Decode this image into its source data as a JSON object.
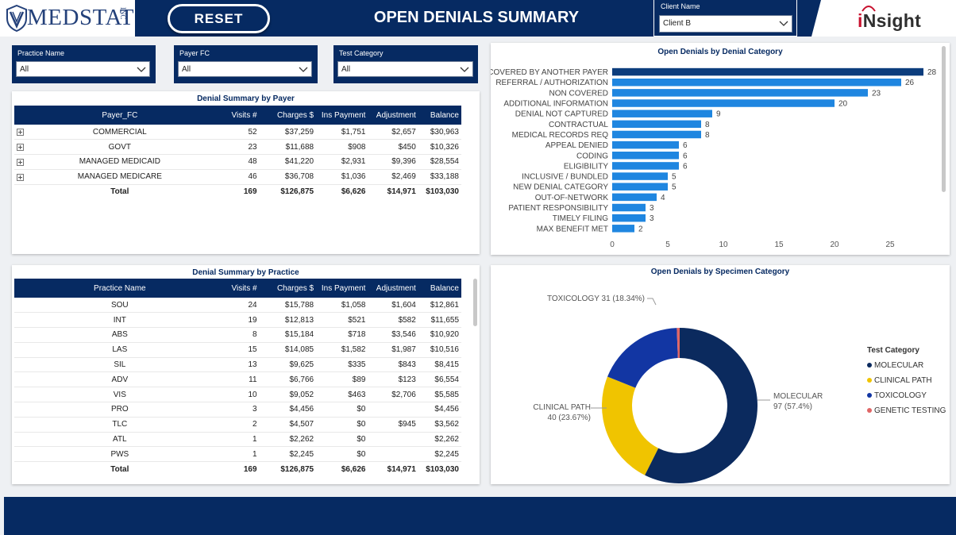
{
  "header": {
    "logo_text": "MEDSTAT",
    "logo_suffix": "INC",
    "reset_label": "RESET",
    "page_title": "OPEN DENIALS SUMMARY",
    "client_label": "Client Name",
    "client_value": "Client B",
    "insight_prefix": "i",
    "insight_rest": "Nsight"
  },
  "slicers": [
    {
      "label": "Practice Name",
      "value": "All"
    },
    {
      "label": "Payer FC",
      "value": "All"
    },
    {
      "label": "Test Category",
      "value": "All"
    }
  ],
  "payer_table": {
    "title": "Denial Summary by Payer",
    "columns": [
      "Payer_FC",
      "Visits #",
      "Charges $",
      "Ins Payment",
      "Adjustment",
      "Balance"
    ],
    "rows": [
      [
        "COMMERCIAL",
        "52",
        "$37,259",
        "$1,751",
        "$2,657",
        "$30,963"
      ],
      [
        "GOVT",
        "23",
        "$11,688",
        "$908",
        "$450",
        "$10,326"
      ],
      [
        "MANAGED MEDICAID",
        "48",
        "$41,220",
        "$2,931",
        "$9,396",
        "$28,554"
      ],
      [
        "MANAGED MEDICARE",
        "46",
        "$36,708",
        "$1,036",
        "$2,469",
        "$33,188"
      ]
    ],
    "total": [
      "Total",
      "169",
      "$126,875",
      "$6,626",
      "$14,971",
      "$103,030"
    ]
  },
  "practice_table": {
    "title": "Denial Summary by Practice",
    "columns": [
      "Practice Name",
      "Visits #",
      "Charges $",
      "Ins Payment",
      "Adjustment",
      "Balance"
    ],
    "rows": [
      [
        "SOU",
        "24",
        "$15,788",
        "$1,058",
        "$1,604",
        "$12,861"
      ],
      [
        "INT",
        "19",
        "$12,813",
        "$521",
        "$582",
        "$11,655"
      ],
      [
        "ABS",
        "8",
        "$15,184",
        "$718",
        "$3,546",
        "$10,920"
      ],
      [
        "LAS",
        "15",
        "$14,085",
        "$1,582",
        "$1,987",
        "$10,516"
      ],
      [
        "SIL",
        "13",
        "$9,625",
        "$335",
        "$843",
        "$8,415"
      ],
      [
        "ADV",
        "11",
        "$6,766",
        "$89",
        "$123",
        "$6,554"
      ],
      [
        "VIS",
        "10",
        "$9,052",
        "$463",
        "$2,706",
        "$5,585"
      ],
      [
        "PRO",
        "3",
        "$4,456",
        "$0",
        "",
        "$4,456"
      ],
      [
        "TLC",
        "2",
        "$4,507",
        "$0",
        "$945",
        "$3,562"
      ],
      [
        "ATL",
        "1",
        "$2,262",
        "$0",
        "",
        "$2,262"
      ],
      [
        "PWS",
        "1",
        "$2,245",
        "$0",
        "",
        "$2,245"
      ]
    ],
    "total": [
      "Total",
      "169",
      "$126,875",
      "$6,626",
      "$14,971",
      "$103,030"
    ]
  },
  "colors": {
    "navy": "#062a62",
    "bar": "#1f86e0",
    "bar_top": "#0c3d7d",
    "molecular": "#0b2a5e",
    "clinical_path": "#f0c400",
    "toxicology": "#1236a3",
    "genetic_testing": "#e06666"
  },
  "chart_data": [
    {
      "type": "bar",
      "orientation": "horizontal",
      "title": "Open Denials by Denial Category",
      "categories": [
        "COVERED BY ANOTHER PAYER",
        "REFERRAL / AUTHORIZATION",
        "NON COVERED",
        "ADDITIONAL INFORMATION",
        "DENIAL NOT CAPTURED",
        "CONTRACTUAL",
        "MEDICAL RECORDS REQ",
        "APPEAL DENIED",
        "CODING",
        "ELIGIBILITY",
        "INCLUSIVE / BUNDLED",
        "NEW DENIAL CATEGORY",
        "OUT-OF-NETWORK",
        "PATIENT RESPONSIBILITY",
        "TIMELY FILING",
        "MAX BENEFIT MET"
      ],
      "values": [
        28,
        26,
        23,
        20,
        9,
        8,
        8,
        6,
        6,
        6,
        5,
        5,
        4,
        3,
        3,
        2
      ],
      "xticks": [
        0,
        5,
        10,
        15,
        20,
        25
      ],
      "xlim": [
        0,
        28.5
      ]
    },
    {
      "type": "pie",
      "donut": true,
      "title": "Open Denials by Specimen Category",
      "legend_title": "Test Category",
      "legend_position": "right",
      "slices": [
        {
          "name": "MOLECULAR",
          "value": 97,
          "label": "MOLECULAR",
          "sublabel": "97 (57.4%)"
        },
        {
          "name": "CLINICAL PATH",
          "value": 40,
          "label": "CLINICAL PATH",
          "sublabel": "40 (23.67%)"
        },
        {
          "name": "TOXICOLOGY",
          "value": 31,
          "label": "TOXICOLOGY 31 (18.34%)",
          "sublabel": ""
        },
        {
          "name": "GENETIC TESTING",
          "value": 1,
          "label": "",
          "sublabel": ""
        }
      ]
    }
  ]
}
